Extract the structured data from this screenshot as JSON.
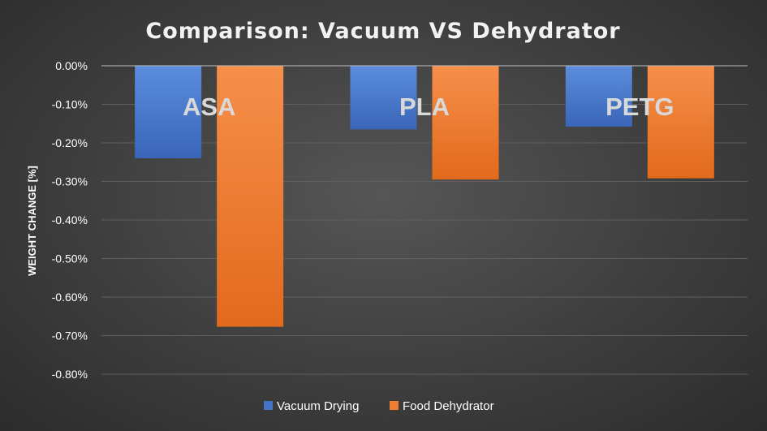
{
  "chart_data": {
    "type": "bar",
    "title": "Comparison: Vacuum VS Dehydrator",
    "xlabel": "",
    "ylabel": "WEIGHT CHANGE [%]",
    "categories": [
      "ASA",
      "PLA",
      "PETG"
    ],
    "series": [
      {
        "name": "Vacuum Drying",
        "values": [
          -0.24,
          -0.165,
          -0.158
        ]
      },
      {
        "name": "Food Dehydrator",
        "values": [
          -0.677,
          -0.295,
          -0.292
        ]
      }
    ],
    "ylim": [
      -0.8,
      0
    ],
    "yticks": [
      0,
      -0.1,
      -0.2,
      -0.3,
      -0.4,
      -0.5,
      -0.6,
      -0.7,
      -0.8
    ],
    "ytick_labels": [
      "0.00%",
      "-0.10%",
      "-0.20%",
      "-0.30%",
      "-0.40%",
      "-0.50%",
      "-0.60%",
      "-0.70%",
      "-0.80%"
    ],
    "grid": true,
    "legend_position": "bottom",
    "colors": {
      "Vacuum Drying": "#4472c4",
      "Food Dehydrator": "#ed7d31",
      "gridline": "#5f5f5f",
      "axis_line": "#bfbfbf"
    }
  }
}
